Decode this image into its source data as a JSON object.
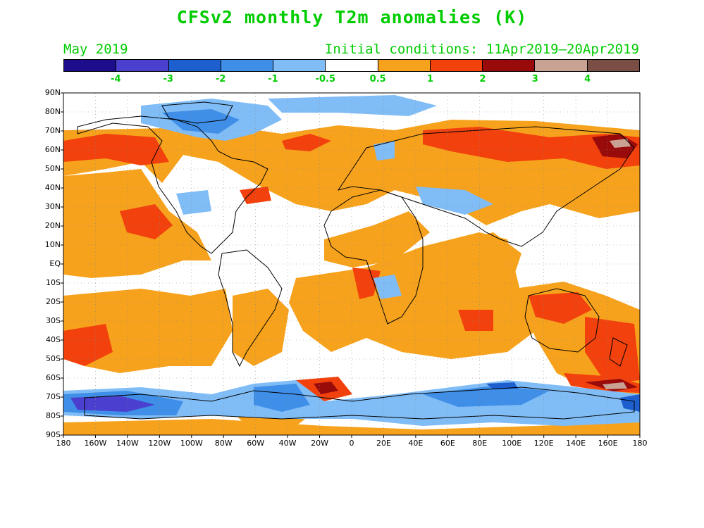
{
  "title": "CFSv2 monthly T2m anomalies (K)",
  "subtitle_left": "May 2019",
  "subtitle_right": "Initial conditions: 11Apr2019–20Apr2019",
  "text_color": "#00cc00",
  "colorbar": {
    "colors": [
      "#1c0d8c",
      "#4b3fd0",
      "#1e5fcf",
      "#3f8fe8",
      "#80bdf7",
      "#ffffff",
      "#f7a21c",
      "#f2410c",
      "#990b0b",
      "#c9a294",
      "#7a4e45"
    ],
    "labels": [
      "-4",
      "-3",
      "-2",
      "-1",
      "-0.5",
      "0.5",
      "1",
      "2",
      "3",
      "4"
    ]
  },
  "map": {
    "y_labels": [
      "90N",
      "80N",
      "70N",
      "60N",
      "50N",
      "40N",
      "30N",
      "20N",
      "10N",
      "EQ",
      "10S",
      "20S",
      "30S",
      "40S",
      "50S",
      "60S",
      "70S",
      "80S",
      "90S"
    ],
    "x_labels": [
      "180",
      "160W",
      "140W",
      "120W",
      "100W",
      "80W",
      "60W",
      "40W",
      "20W",
      "0",
      "20E",
      "40E",
      "60E",
      "80E",
      "100E",
      "120E",
      "140E",
      "160E",
      "180"
    ]
  }
}
